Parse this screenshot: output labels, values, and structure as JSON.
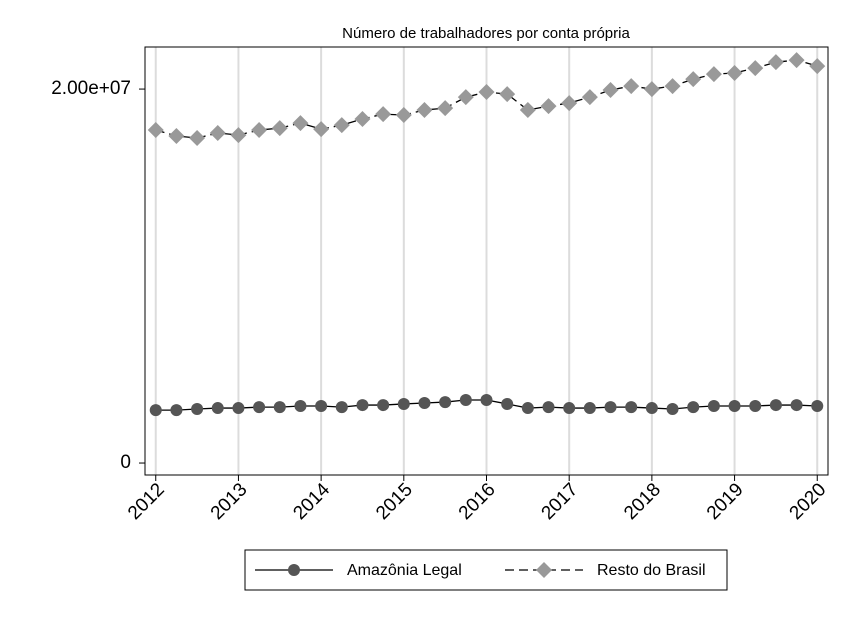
{
  "chart_data": {
    "type": "line",
    "title": "Número de trabalhadores por conta própria",
    "x": [
      2012,
      2012.25,
      2012.5,
      2012.75,
      2013,
      2013.25,
      2013.5,
      2013.75,
      2014,
      2014.25,
      2014.5,
      2014.75,
      2015,
      2015.25,
      2015.5,
      2015.75,
      2016,
      2016.25,
      2016.5,
      2016.75,
      2017,
      2017.25,
      2017.5,
      2017.75,
      2018,
      2018.25,
      2018.5,
      2018.75,
      2019,
      2019.25,
      2019.5,
      2019.75,
      2020
    ],
    "series": [
      {
        "name": "Amazônia Legal",
        "color": "#555555",
        "marker": "circle",
        "line_style": "solid",
        "values": [
          2830000,
          2830000,
          2890000,
          2940000,
          2940000,
          2990000,
          2990000,
          3050000,
          3050000,
          2990000,
          3100000,
          3100000,
          3160000,
          3210000,
          3260000,
          3370000,
          3370000,
          3160000,
          2940000,
          2990000,
          2940000,
          2940000,
          2990000,
          2990000,
          2940000,
          2890000,
          2990000,
          3050000,
          3050000,
          3050000,
          3100000,
          3100000,
          3050000
        ]
      },
      {
        "name": "Resto do Brasil",
        "color": "#999999",
        "marker": "diamond",
        "line_style": "dashed",
        "values": [
          17810000,
          17490000,
          17380000,
          17650000,
          17540000,
          17810000,
          17910000,
          18180000,
          17860000,
          18070000,
          18400000,
          18660000,
          18610000,
          18880000,
          18980000,
          19570000,
          19840000,
          19730000,
          18880000,
          19090000,
          19250000,
          19570000,
          19950000,
          20160000,
          20000000,
          20160000,
          20530000,
          20800000,
          20860000,
          21120000,
          21440000,
          21550000,
          21230000
        ]
      }
    ],
    "xlim": [
      2011.87,
      2020.13
    ],
    "xticks": [
      2012,
      2013,
      2014,
      2015,
      2016,
      2017,
      2018,
      2019,
      2020
    ],
    "ylim": [
      -640000,
      22250000
    ],
    "yticks": [
      0,
      {
        "value": 20000000,
        "label": "2.00e+07"
      }
    ],
    "grid": true,
    "legend": "bottom"
  }
}
